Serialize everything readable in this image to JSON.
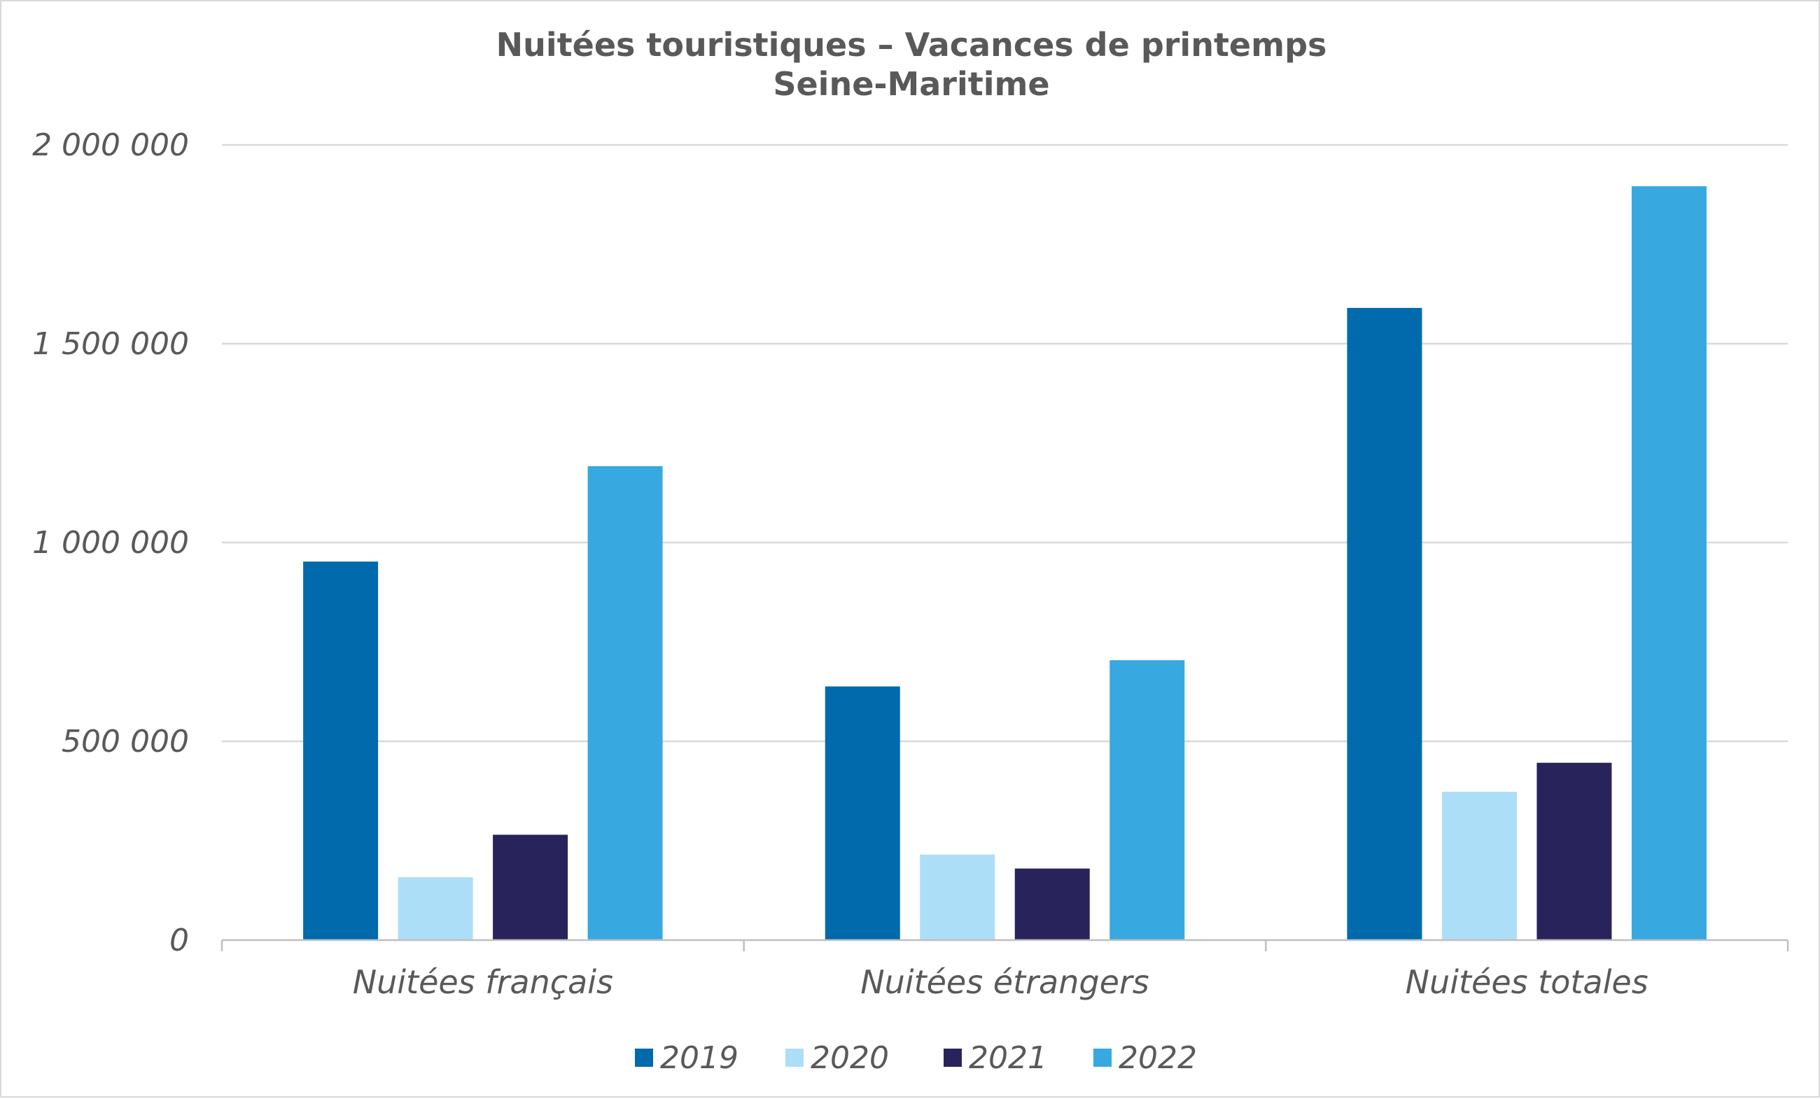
{
  "chart_data": {
    "type": "bar",
    "title": "Nuitées touristiques – Vacances de printemps",
    "subtitle": "Seine-Maritime",
    "xlabel": "",
    "ylabel": "",
    "ylim": [
      0,
      2000000
    ],
    "yticks": [
      0,
      500000,
      1000000,
      1500000,
      2000000
    ],
    "ytick_labels": [
      "0",
      "500 000",
      "1 000 000",
      "1 500 000",
      "2 000 000"
    ],
    "grid": true,
    "legend_position": "bottom",
    "categories": [
      "Nuitées français",
      "Nuitées étrangers",
      "Nuitées totales"
    ],
    "series": [
      {
        "name": "2019",
        "color": "#006AAC",
        "values": [
          952000,
          638000,
          1590000
        ]
      },
      {
        "name": "2020",
        "color": "#ADDEF8",
        "values": [
          158000,
          215000,
          373000
        ]
      },
      {
        "name": "2021",
        "color": "#29235C",
        "values": [
          265000,
          180000,
          446000
        ]
      },
      {
        "name": "2022",
        "color": "#37A9E0",
        "values": [
          1192000,
          704000,
          1896000
        ]
      }
    ]
  }
}
